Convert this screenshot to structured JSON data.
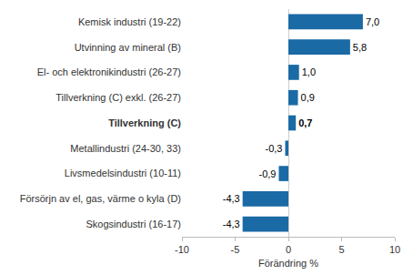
{
  "chart_data": {
    "type": "bar",
    "orientation": "horizontal",
    "categories": [
      "Kemisk industri (19-22)",
      "Utvinning av mineral (B)",
      "El- och elektronikindustri (26-27)",
      "Tillverkning (C) exkl. (26-27)",
      "Tillverkning (C)",
      "Metallindustri (24-30, 33)",
      "Livsmedelsindustri (10-11)",
      "Försörjn av el, gas, värme o kyla (D)",
      "Skogsindustri (16-17)"
    ],
    "values": [
      7.0,
      5.8,
      1.0,
      0.9,
      0.7,
      -0.3,
      -0.9,
      -4.3,
      -4.3
    ],
    "value_labels": [
      "7,0",
      "5,8",
      "1,0",
      "0,9",
      "0,7",
      "-0,3",
      "-0,9",
      "-4,3",
      "-4,3"
    ],
    "data_labels": true,
    "color": "#1a6aa5",
    "xlabel": "Förändring %",
    "xlim": [
      -10,
      10
    ],
    "xticks": [
      -10,
      -5,
      0,
      5,
      10
    ],
    "grid": false
  }
}
